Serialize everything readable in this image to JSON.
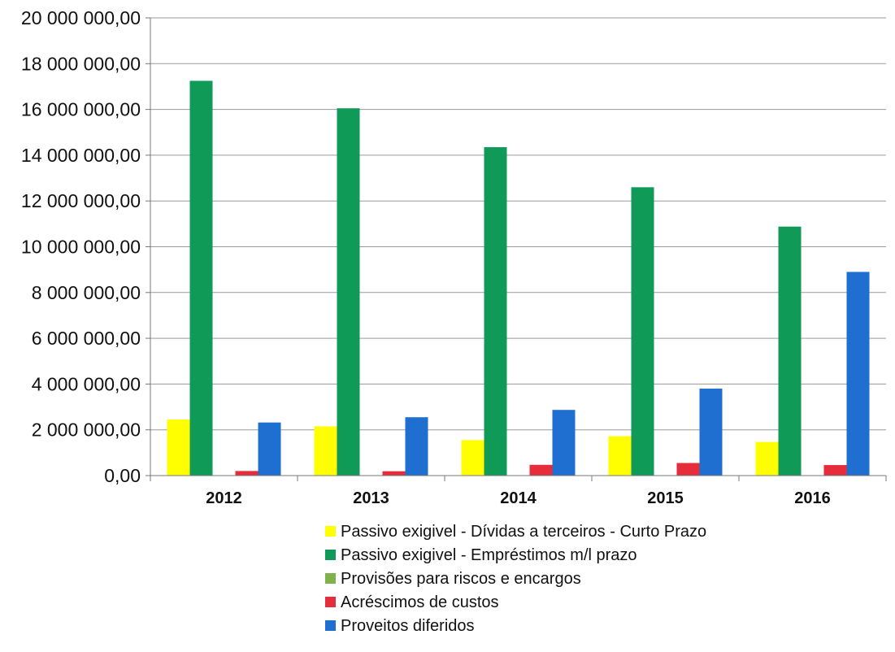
{
  "chart_data": {
    "type": "bar",
    "categories": [
      "2012",
      "2013",
      "2014",
      "2015",
      "2016"
    ],
    "series": [
      {
        "name": "Passivo exigivel - Dívidas a terceiros - Curto Prazo",
        "color": "#ffff00",
        "values": [
          2450000,
          2150000,
          1550000,
          1720000,
          1470000
        ]
      },
      {
        "name": "Passivo exigivel - Empréstimos m/l prazo",
        "color": "#0f9a58",
        "values": [
          17250000,
          16050000,
          14350000,
          12600000,
          10880000
        ]
      },
      {
        "name": "Provisões para riscos e encargos",
        "color": "#7fb24a",
        "values": [
          0,
          0,
          0,
          0,
          0
        ]
      },
      {
        "name": "Acréscimos de custos",
        "color": "#e52d3b",
        "values": [
          200000,
          190000,
          470000,
          550000,
          460000
        ]
      },
      {
        "name": "Proveitos diferidos",
        "color": "#1f6fd0",
        "values": [
          2320000,
          2550000,
          2870000,
          3800000,
          8900000
        ]
      }
    ],
    "y_ticks": [
      "0,00",
      "2 000 000,00",
      "4 000 000,00",
      "6 000 000,00",
      "8 000 000,00",
      "10 000 000,00",
      "12 000 000,00",
      "14 000 000,00",
      "16 000 000,00",
      "18 000 000,00",
      "20 000 000,00"
    ],
    "ylim": [
      0,
      20000000
    ],
    "grid": true,
    "legend_position": "bottom"
  }
}
